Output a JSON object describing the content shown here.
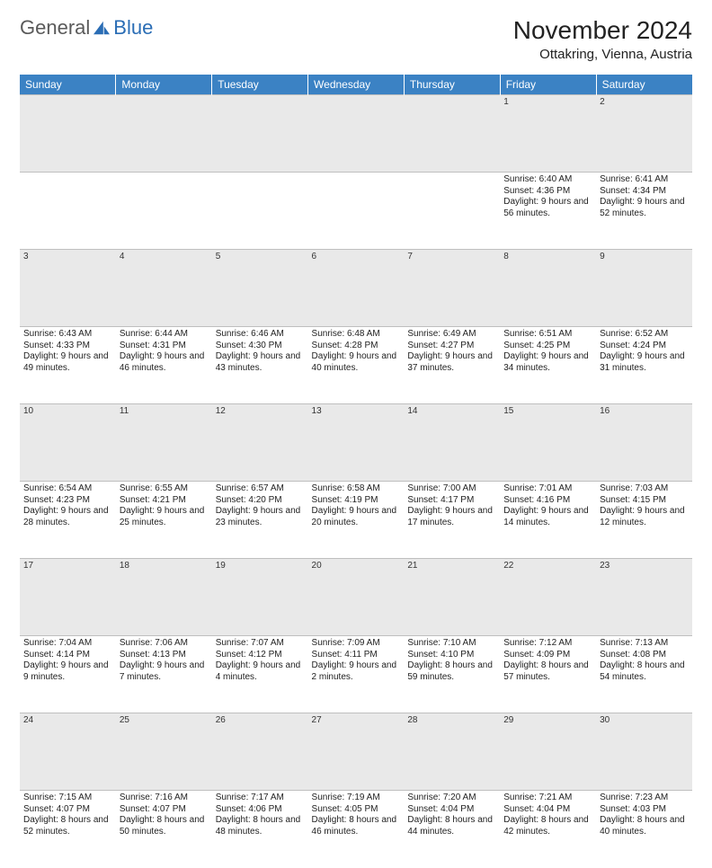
{
  "brand": {
    "general": "General",
    "blue": "Blue"
  },
  "title": "November 2024",
  "location": "Ottakring, Vienna, Austria",
  "colors": {
    "header_bg": "#3b82c4",
    "header_text": "#ffffff",
    "daynum_bg": "#e9e9e9",
    "grid_line": "#bfbfbf",
    "text": "#222222",
    "logo_gray": "#5a5a5a",
    "logo_blue": "#2a6db5"
  },
  "day_headers": [
    "Sunday",
    "Monday",
    "Tuesday",
    "Wednesday",
    "Thursday",
    "Friday",
    "Saturday"
  ],
  "weeks": [
    [
      {
        "num": "",
        "sunrise": "",
        "sunset": "",
        "daylight": ""
      },
      {
        "num": "",
        "sunrise": "",
        "sunset": "",
        "daylight": ""
      },
      {
        "num": "",
        "sunrise": "",
        "sunset": "",
        "daylight": ""
      },
      {
        "num": "",
        "sunrise": "",
        "sunset": "",
        "daylight": ""
      },
      {
        "num": "",
        "sunrise": "",
        "sunset": "",
        "daylight": ""
      },
      {
        "num": "1",
        "sunrise": "Sunrise: 6:40 AM",
        "sunset": "Sunset: 4:36 PM",
        "daylight": "Daylight: 9 hours and 56 minutes."
      },
      {
        "num": "2",
        "sunrise": "Sunrise: 6:41 AM",
        "sunset": "Sunset: 4:34 PM",
        "daylight": "Daylight: 9 hours and 52 minutes."
      }
    ],
    [
      {
        "num": "3",
        "sunrise": "Sunrise: 6:43 AM",
        "sunset": "Sunset: 4:33 PM",
        "daylight": "Daylight: 9 hours and 49 minutes."
      },
      {
        "num": "4",
        "sunrise": "Sunrise: 6:44 AM",
        "sunset": "Sunset: 4:31 PM",
        "daylight": "Daylight: 9 hours and 46 minutes."
      },
      {
        "num": "5",
        "sunrise": "Sunrise: 6:46 AM",
        "sunset": "Sunset: 4:30 PM",
        "daylight": "Daylight: 9 hours and 43 minutes."
      },
      {
        "num": "6",
        "sunrise": "Sunrise: 6:48 AM",
        "sunset": "Sunset: 4:28 PM",
        "daylight": "Daylight: 9 hours and 40 minutes."
      },
      {
        "num": "7",
        "sunrise": "Sunrise: 6:49 AM",
        "sunset": "Sunset: 4:27 PM",
        "daylight": "Daylight: 9 hours and 37 minutes."
      },
      {
        "num": "8",
        "sunrise": "Sunrise: 6:51 AM",
        "sunset": "Sunset: 4:25 PM",
        "daylight": "Daylight: 9 hours and 34 minutes."
      },
      {
        "num": "9",
        "sunrise": "Sunrise: 6:52 AM",
        "sunset": "Sunset: 4:24 PM",
        "daylight": "Daylight: 9 hours and 31 minutes."
      }
    ],
    [
      {
        "num": "10",
        "sunrise": "Sunrise: 6:54 AM",
        "sunset": "Sunset: 4:23 PM",
        "daylight": "Daylight: 9 hours and 28 minutes."
      },
      {
        "num": "11",
        "sunrise": "Sunrise: 6:55 AM",
        "sunset": "Sunset: 4:21 PM",
        "daylight": "Daylight: 9 hours and 25 minutes."
      },
      {
        "num": "12",
        "sunrise": "Sunrise: 6:57 AM",
        "sunset": "Sunset: 4:20 PM",
        "daylight": "Daylight: 9 hours and 23 minutes."
      },
      {
        "num": "13",
        "sunrise": "Sunrise: 6:58 AM",
        "sunset": "Sunset: 4:19 PM",
        "daylight": "Daylight: 9 hours and 20 minutes."
      },
      {
        "num": "14",
        "sunrise": "Sunrise: 7:00 AM",
        "sunset": "Sunset: 4:17 PM",
        "daylight": "Daylight: 9 hours and 17 minutes."
      },
      {
        "num": "15",
        "sunrise": "Sunrise: 7:01 AM",
        "sunset": "Sunset: 4:16 PM",
        "daylight": "Daylight: 9 hours and 14 minutes."
      },
      {
        "num": "16",
        "sunrise": "Sunrise: 7:03 AM",
        "sunset": "Sunset: 4:15 PM",
        "daylight": "Daylight: 9 hours and 12 minutes."
      }
    ],
    [
      {
        "num": "17",
        "sunrise": "Sunrise: 7:04 AM",
        "sunset": "Sunset: 4:14 PM",
        "daylight": "Daylight: 9 hours and 9 minutes."
      },
      {
        "num": "18",
        "sunrise": "Sunrise: 7:06 AM",
        "sunset": "Sunset: 4:13 PM",
        "daylight": "Daylight: 9 hours and 7 minutes."
      },
      {
        "num": "19",
        "sunrise": "Sunrise: 7:07 AM",
        "sunset": "Sunset: 4:12 PM",
        "daylight": "Daylight: 9 hours and 4 minutes."
      },
      {
        "num": "20",
        "sunrise": "Sunrise: 7:09 AM",
        "sunset": "Sunset: 4:11 PM",
        "daylight": "Daylight: 9 hours and 2 minutes."
      },
      {
        "num": "21",
        "sunrise": "Sunrise: 7:10 AM",
        "sunset": "Sunset: 4:10 PM",
        "daylight": "Daylight: 8 hours and 59 minutes."
      },
      {
        "num": "22",
        "sunrise": "Sunrise: 7:12 AM",
        "sunset": "Sunset: 4:09 PM",
        "daylight": "Daylight: 8 hours and 57 minutes."
      },
      {
        "num": "23",
        "sunrise": "Sunrise: 7:13 AM",
        "sunset": "Sunset: 4:08 PM",
        "daylight": "Daylight: 8 hours and 54 minutes."
      }
    ],
    [
      {
        "num": "24",
        "sunrise": "Sunrise: 7:15 AM",
        "sunset": "Sunset: 4:07 PM",
        "daylight": "Daylight: 8 hours and 52 minutes."
      },
      {
        "num": "25",
        "sunrise": "Sunrise: 7:16 AM",
        "sunset": "Sunset: 4:07 PM",
        "daylight": "Daylight: 8 hours and 50 minutes."
      },
      {
        "num": "26",
        "sunrise": "Sunrise: 7:17 AM",
        "sunset": "Sunset: 4:06 PM",
        "daylight": "Daylight: 8 hours and 48 minutes."
      },
      {
        "num": "27",
        "sunrise": "Sunrise: 7:19 AM",
        "sunset": "Sunset: 4:05 PM",
        "daylight": "Daylight: 8 hours and 46 minutes."
      },
      {
        "num": "28",
        "sunrise": "Sunrise: 7:20 AM",
        "sunset": "Sunset: 4:04 PM",
        "daylight": "Daylight: 8 hours and 44 minutes."
      },
      {
        "num": "29",
        "sunrise": "Sunrise: 7:21 AM",
        "sunset": "Sunset: 4:04 PM",
        "daylight": "Daylight: 8 hours and 42 minutes."
      },
      {
        "num": "30",
        "sunrise": "Sunrise: 7:23 AM",
        "sunset": "Sunset: 4:03 PM",
        "daylight": "Daylight: 8 hours and 40 minutes."
      }
    ]
  ]
}
